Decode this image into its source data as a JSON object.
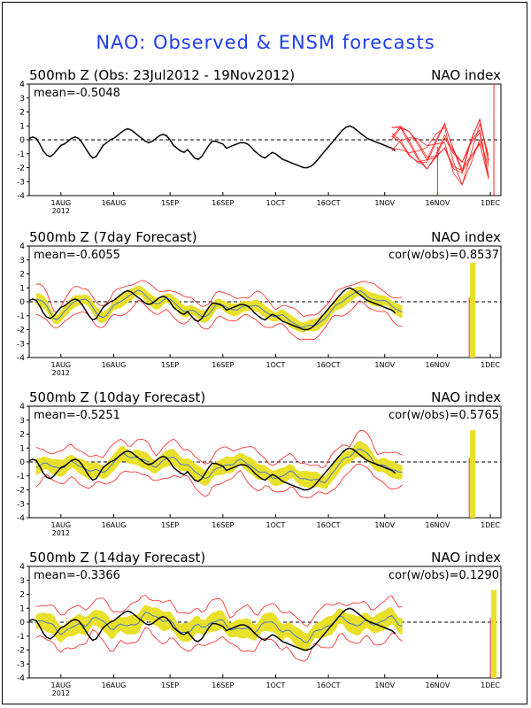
{
  "figure_title": "NAO: Observed & ENSM forecasts",
  "colors": {
    "title": "#1f3df2",
    "observed": "#000000",
    "members": "#ff2020",
    "spread": "#e8e02a",
    "ensemble_mean": "#3a6fd8",
    "zero_line": "#000000"
  },
  "x_ticks": [
    {
      "label": "1AUG",
      "year": "2012",
      "day": 9
    },
    {
      "label": "16AUG",
      "year": "",
      "day": 24
    },
    {
      "label": "1SEP",
      "year": "",
      "day": 40
    },
    {
      "label": "16SEP",
      "year": "",
      "day": 55
    },
    {
      "label": "1OCT",
      "year": "",
      "day": 70
    },
    {
      "label": "16OCT",
      "year": "",
      "day": 85
    },
    {
      "label": "1NOV",
      "year": "",
      "day": 101
    },
    {
      "label": "16NOV",
      "year": "",
      "day": 116
    },
    {
      "label": "1DEC",
      "year": "",
      "day": 131
    }
  ],
  "y_ticks": [
    "4",
    "3",
    "2",
    "1",
    "0",
    "-1",
    "-2",
    "-3",
    "-4"
  ],
  "chart_data": [
    {
      "type": "line",
      "title": "500mb Z (Obs: 23Jul2012 - 19Nov2012)",
      "right_label": "NAO index",
      "mean_text": "mean=-0.5048",
      "cor_text": "",
      "ylim": [
        -4,
        4
      ],
      "x_range": [
        "23Jul2012",
        "3Dec2012"
      ],
      "series": [
        {
          "name": "",
          "x_day_start": 0,
          "values": [
            0.1,
            0.2,
            0.1,
            -0.3,
            -0.8,
            -1.1,
            -1.2,
            -1.0,
            -0.7,
            -0.4,
            -0.3,
            -0.1,
            0.1,
            0.2,
            0.1,
            -0.2,
            -0.6,
            -1.0,
            -1.3,
            -1.2,
            -0.8,
            -0.4,
            -0.2,
            0.0,
            0.1,
            0.3,
            0.5,
            0.7,
            0.8,
            0.7,
            0.5,
            0.3,
            0.1,
            -0.1,
            -0.2,
            -0.1,
            0.1,
            0.3,
            0.4,
            0.3,
            0.0,
            -0.4,
            -0.6,
            -0.8,
            -0.9,
            -0.7,
            -1.0,
            -1.3,
            -1.4,
            -1.2,
            -0.8,
            -0.4,
            -0.1,
            -0.1,
            -0.2,
            -0.3,
            -0.6,
            -0.5,
            -0.4,
            -0.3,
            -0.2,
            -0.2,
            -0.3,
            -0.5,
            -0.8,
            -1.0,
            -1.2,
            -1.3,
            -1.1,
            -0.9,
            -1.0,
            -1.2,
            -1.4,
            -1.5,
            -1.6,
            -1.7,
            -1.8,
            -1.9,
            -2.0,
            -2.0,
            -1.9,
            -1.7,
            -1.4,
            -1.1,
            -0.8,
            -0.5,
            -0.2,
            0.1,
            0.4,
            0.7,
            0.9,
            1.0,
            0.9,
            0.7,
            0.5,
            0.3,
            0.1,
            0.0,
            -0.1,
            -0.2,
            -0.3,
            -0.4,
            -0.5,
            -0.6,
            -0.8
          ]
        },
        {
          "name": "",
          "x_day_start": 103,
          "values": [
            0.0,
            0.2,
            -0.3,
            -0.8,
            -1.2,
            -0.5,
            0.3,
            -1.5,
            -2.5,
            -0.8,
            0.6,
            -2.0
          ]
        }
      ]
    },
    {
      "type": "line",
      "title": "500mb Z (7day Forecast)",
      "right_label": "NAO index",
      "mean_text": "mean=-0.6055",
      "cor_text": "cor(w/obs)=0.8537",
      "ylim": [
        -4,
        4
      ],
      "series": [
        {
          "name": "",
          "lag": 7,
          "smooth": 1,
          "noise": 0.3,
          "spread": 0.45
        },
        {
          "name": "",
          "lag": 0,
          "smooth": 0,
          "noise": 0,
          "spread": 0
        }
      ]
    },
    {
      "type": "line",
      "title": "500mb Z (10day Forecast)",
      "right_label": "NAO index",
      "mean_text": "mean=-0.5251",
      "cor_text": "cor(w/obs)=0.5765",
      "ylim": [
        -4,
        4
      ],
      "series": [
        {
          "name": "",
          "lag": 10,
          "smooth": 3,
          "noise": 0.5,
          "spread": 0.6
        },
        {
          "name": "",
          "lag": 0,
          "smooth": 0,
          "noise": 0,
          "spread": 0
        }
      ]
    },
    {
      "type": "line",
      "title": "500mb Z (14day Forecast)",
      "right_label": "NAO index",
      "mean_text": "mean=-0.3366",
      "cor_text": "cor(w/obs)=0.1290",
      "ylim": [
        -4,
        4
      ],
      "series": [
        {
          "name": "",
          "lag": 14,
          "smooth": 6,
          "noise": 0.7,
          "spread": 0.7
        },
        {
          "name": "",
          "lag": 0,
          "smooth": 0,
          "noise": 0,
          "spread": 0
        }
      ]
    }
  ]
}
